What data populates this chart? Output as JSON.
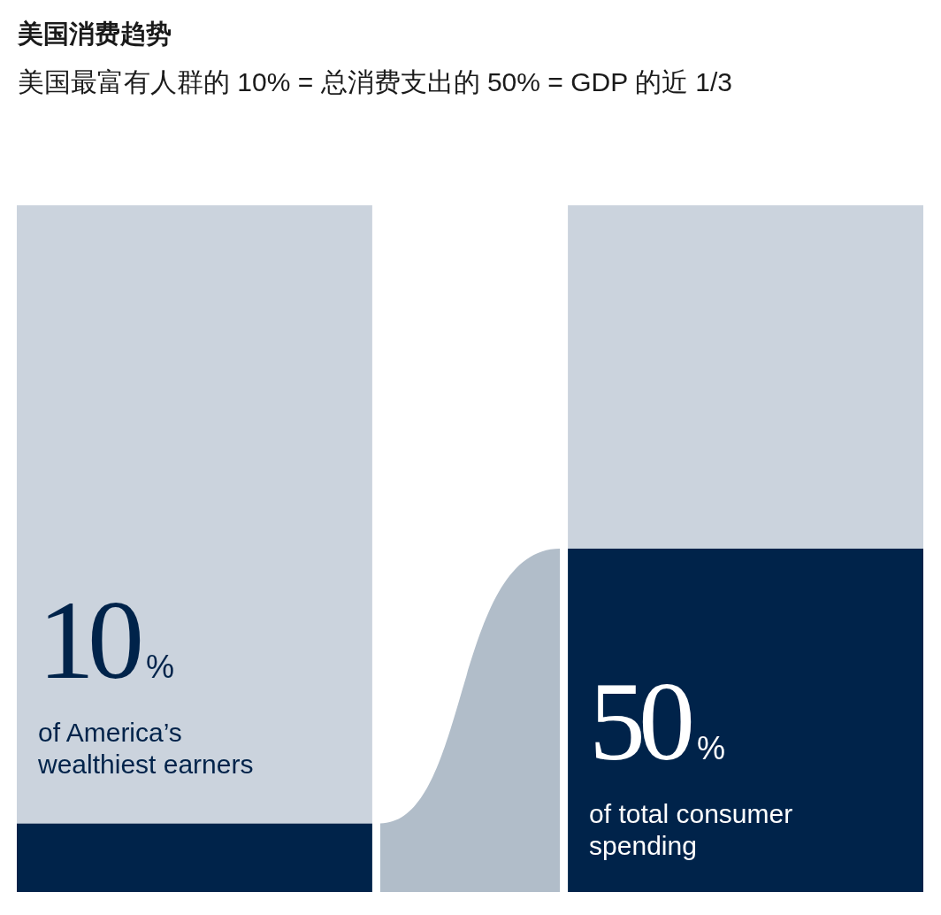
{
  "chart_data": {
    "type": "bar",
    "title": "美国消费趋势",
    "subtitle": "美国最富有人群的 10% = 总消费支出的 50% = GDP 的近 1/3",
    "categories": [
      null,
      null
    ],
    "stacked": true,
    "ylim": [
      0,
      100
    ],
    "tick_labels": false,
    "series": [
      {
        "color": "#00234a",
        "values": [
          10,
          50
        ],
        "value_labels": [
          "10%",
          "50%"
        ]
      },
      {
        "color": "#cbd3dd",
        "values": [
          90,
          50
        ]
      }
    ],
    "annotations": [
      "of America’s wealthiest earners",
      "of total consumer spending"
    ]
  }
}
